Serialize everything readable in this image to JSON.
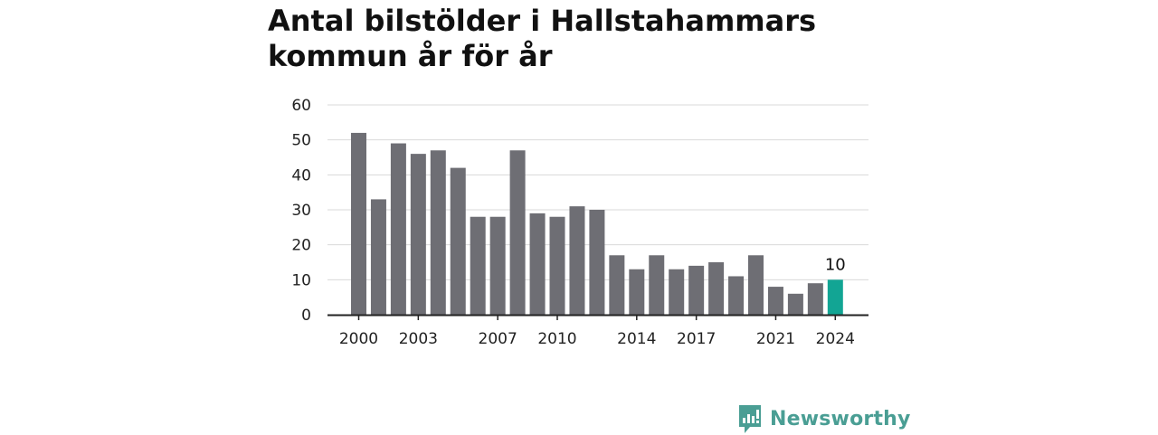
{
  "chart_data": {
    "type": "bar",
    "title": "Antal bilstölder i Hallstahammars kommun år för år",
    "categories": [
      2000,
      2001,
      2002,
      2003,
      2004,
      2005,
      2006,
      2007,
      2008,
      2009,
      2010,
      2011,
      2012,
      2013,
      2014,
      2015,
      2016,
      2017,
      2018,
      2019,
      2020,
      2021,
      2022,
      2023,
      2024
    ],
    "values": [
      52,
      33,
      49,
      46,
      47,
      42,
      28,
      28,
      47,
      29,
      28,
      31,
      30,
      17,
      13,
      17,
      13,
      14,
      15,
      11,
      17,
      8,
      6,
      9,
      10
    ],
    "x_tick_labels": [
      "2000",
      "2003",
      "2007",
      "2010",
      "2014",
      "2017",
      "2021",
      "2024"
    ],
    "y_ticks": [
      "0",
      "10",
      "20",
      "30",
      "40",
      "50",
      "60"
    ],
    "ylim": [
      0,
      60
    ],
    "xlabel": "",
    "ylabel": "",
    "grid": true,
    "highlight": {
      "category": 2024,
      "label": "10"
    },
    "colors": {
      "bar": "#6e6e74",
      "highlight": "#12a594",
      "grid": "#d9d9d9",
      "axis": "#222222"
    }
  },
  "brand": {
    "name": "Newsworthy",
    "color": "#4a9e94",
    "icon": "newsworthy-logo-icon"
  }
}
